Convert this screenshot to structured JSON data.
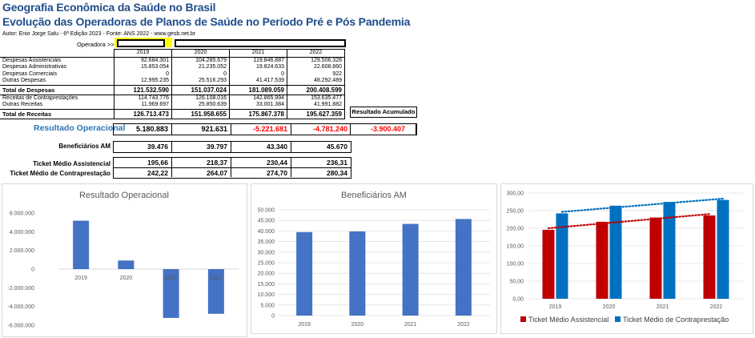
{
  "header": {
    "title": "Geografia Econômica da Saúde no Brasil",
    "subtitle": "Evolução das Operadoras de Planos de Saúde no Período Pré e Pós Pandemia",
    "author": "Autor: Enio Jorge Salu - 6ª Edição 2023 - Fonte: ANS 2022 - www.gesb.net.br",
    "operadora_label": "Operadora >>>"
  },
  "table": {
    "years": [
      "2019",
      "2020",
      "2021",
      "2022"
    ],
    "rows": [
      {
        "label": "Despesas Assistenciais",
        "values": [
          "92.684.301",
          "104.285.679",
          "119.846.887",
          "129.506.328"
        ]
      },
      {
        "label": "Despesas Administrativas",
        "values": [
          "15.853.054",
          "21.235.052",
          "19.824.633",
          "22.608.860"
        ]
      },
      {
        "label": "Despesas Comerciais",
        "values": [
          "0",
          "0",
          "0",
          "922"
        ]
      },
      {
        "label": "Outras Despesas",
        "values": [
          "12.995.235",
          "25.516.293",
          "41.417.539",
          "48.292.489"
        ]
      },
      {
        "label": "Total de Despesas",
        "values": [
          "121.532.590",
          "151.037.024",
          "181.089.059",
          "200.408.599"
        ],
        "total": true
      },
      {
        "label": "Receitas de Contraprestações",
        "values": [
          "114.743.776",
          "126.108.016",
          "142.865.994",
          "153.635.477"
        ]
      },
      {
        "label": "Outras Receitas",
        "values": [
          "11.969.697",
          "25.850.639",
          "33.001.384",
          "41.991.882"
        ]
      },
      {
        "label": "Total de Receitas",
        "values": [
          "126.713.473",
          "151.958.655",
          "175.867.378",
          "195.627.359"
        ],
        "total": true
      }
    ],
    "acumulado_label": "Resultado Acumulado"
  },
  "resultado": {
    "label": "Resultado Operacional",
    "values": [
      "5.180.883",
      "921.631",
      "-5.221.681",
      "-4.781.240"
    ],
    "acumulado": "-3.900.407"
  },
  "beneficiarios": {
    "label": "Beneficiários AM",
    "values": [
      "39.476",
      "39.797",
      "43.340",
      "45.670"
    ]
  },
  "ticket_assist": {
    "label": "Ticket Médio Assistencial",
    "values": [
      "195,66",
      "218,37",
      "230,44",
      "236,31"
    ]
  },
  "ticket_contra": {
    "label": "Ticket Médio de Contraprestação",
    "values": [
      "242,22",
      "264,07",
      "274,70",
      "280,34"
    ]
  },
  "colors": {
    "title": "#1f4e8c",
    "accent": "#2e75b6",
    "bar_blue": "#4472c4",
    "bar_dark_blue": "#0070c0",
    "bar_red": "#c00000",
    "negative": "#ff0000",
    "operadora_highlight": "#ffff00"
  },
  "chart_data": [
    {
      "type": "bar",
      "title": "Resultado Operacional",
      "categories": [
        "2019",
        "2020",
        "2021",
        "2022"
      ],
      "values": [
        5180883,
        921631,
        -5221681,
        -4781240
      ],
      "ylim": [
        -6000000,
        6000000
      ],
      "yticks": [
        "6.000.000",
        "4.000.000",
        "2.000.000",
        "0",
        "-2.000.000",
        "-4.000.000",
        "-6.000.000"
      ],
      "negative_ticks_red": true,
      "grid": false
    },
    {
      "type": "bar",
      "title": "Beneficiários AM",
      "categories": [
        "2019",
        "2020",
        "2021",
        "2022"
      ],
      "values": [
        39476,
        39797,
        43340,
        45670
      ],
      "ylim": [
        0,
        50000
      ],
      "yticks": [
        "0",
        "5.000",
        "10.000",
        "15.000",
        "20.000",
        "25.000",
        "30.000",
        "35.000",
        "40.000",
        "45.000",
        "50.000"
      ],
      "grid": true
    },
    {
      "type": "bar",
      "title": "",
      "categories": [
        "2019",
        "2020",
        "2021",
        "2022"
      ],
      "series": [
        {
          "name": "Ticket Médio Assistencial",
          "values": [
            195.66,
            218.37,
            230.44,
            236.31
          ]
        },
        {
          "name": "Ticket Médio de Contraprestação",
          "values": [
            242.22,
            264.07,
            274.7,
            280.34
          ]
        }
      ],
      "trendlines": true,
      "ylim": [
        0,
        300
      ],
      "yticks": [
        "0,00",
        "50,00",
        "100,00",
        "150,00",
        "200,00",
        "250,00",
        "300,00"
      ],
      "grid": true,
      "legend": "bottom"
    }
  ]
}
